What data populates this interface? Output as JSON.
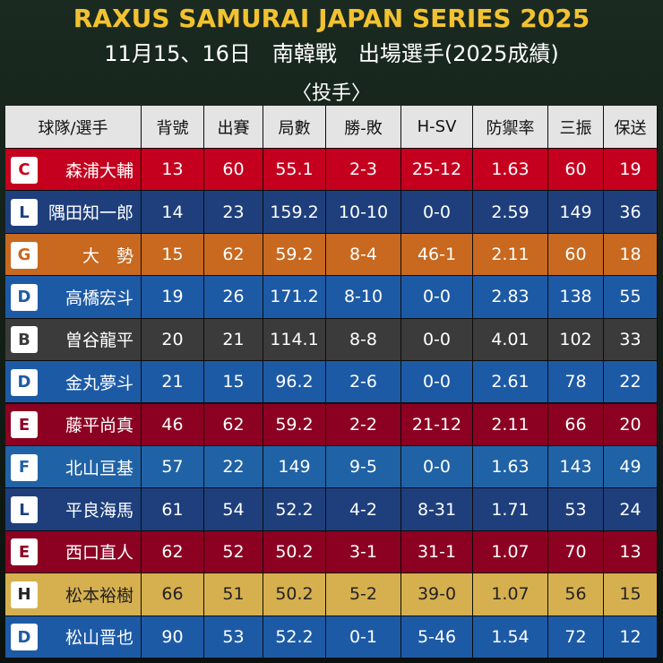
{
  "header": {
    "title": "RAXUS SAMURAI JAPAN SERIES 2025",
    "subtitle": "11月15、16日　南韓戰　出場選手(2025成績)",
    "section": "〈投手〉"
  },
  "table": {
    "columns": [
      "球隊/選手",
      "背號",
      "出賽",
      "局數",
      "勝-敗",
      "H-SV",
      "防禦率",
      "三振",
      "保送"
    ],
    "rows": [
      {
        "logo": "C",
        "color": "#c4001e",
        "text": "#ffffff",
        "cells": [
          "森浦大輔",
          "13",
          "60",
          "55.1",
          "2-3",
          "25-12",
          "1.63",
          "60",
          "19"
        ]
      },
      {
        "logo": "L",
        "color": "#1e3f7c",
        "text": "#ffffff",
        "cells": [
          "隅田知一郎",
          "14",
          "23",
          "159.2",
          "10-10",
          "0-0",
          "2.59",
          "149",
          "36"
        ]
      },
      {
        "logo": "G",
        "color": "#c8691f",
        "text": "#ffffff",
        "cells": [
          "大　勢",
          "15",
          "62",
          "59.2",
          "8-4",
          "46-1",
          "2.11",
          "60",
          "18"
        ]
      },
      {
        "logo": "D",
        "color": "#1d5aa6",
        "text": "#ffffff",
        "cells": [
          "高橋宏斗",
          "19",
          "26",
          "171.2",
          "8-10",
          "0-0",
          "2.83",
          "138",
          "55"
        ]
      },
      {
        "logo": "B",
        "color": "#3b3b3b",
        "text": "#ffffff",
        "cells": [
          "曽谷龍平",
          "20",
          "21",
          "114.1",
          "8-8",
          "0-0",
          "4.01",
          "102",
          "33"
        ]
      },
      {
        "logo": "D",
        "color": "#1d5aa6",
        "text": "#ffffff",
        "cells": [
          "金丸夢斗",
          "21",
          "15",
          "96.2",
          "2-6",
          "0-0",
          "2.61",
          "78",
          "22"
        ]
      },
      {
        "logo": "E",
        "color": "#8c0022",
        "text": "#ffffff",
        "cells": [
          "藤平尚真",
          "46",
          "62",
          "59.2",
          "2-2",
          "21-12",
          "2.11",
          "66",
          "20"
        ]
      },
      {
        "logo": "F",
        "color": "#2062a6",
        "text": "#ffffff",
        "cells": [
          "北山亘基",
          "57",
          "22",
          "149",
          "9-5",
          "0-0",
          "1.63",
          "143",
          "49"
        ]
      },
      {
        "logo": "L",
        "color": "#1e3f7c",
        "text": "#ffffff",
        "cells": [
          "平良海馬",
          "61",
          "54",
          "52.2",
          "4-2",
          "8-31",
          "1.71",
          "53",
          "24"
        ]
      },
      {
        "logo": "E",
        "color": "#8c0022",
        "text": "#ffffff",
        "cells": [
          "西口直人",
          "62",
          "52",
          "50.2",
          "3-1",
          "31-1",
          "1.07",
          "70",
          "13"
        ]
      },
      {
        "logo": "H",
        "color": "#d6b04f",
        "text": "#222222",
        "cells": [
          "松本裕樹",
          "66",
          "51",
          "50.2",
          "5-2",
          "39-0",
          "1.07",
          "56",
          "15"
        ]
      },
      {
        "logo": "D",
        "color": "#1d5aa6",
        "text": "#ffffff",
        "cells": [
          "松山晋也",
          "90",
          "53",
          "52.2",
          "0-1",
          "5-46",
          "1.54",
          "72",
          "12"
        ]
      }
    ]
  }
}
